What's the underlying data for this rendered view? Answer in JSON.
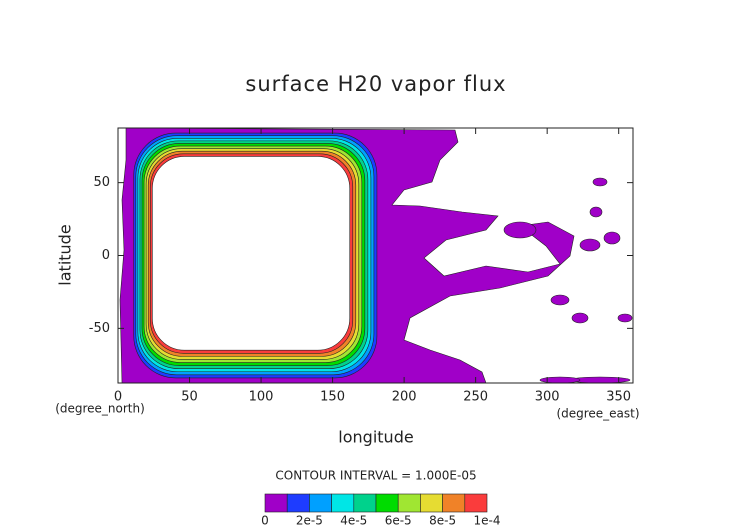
{
  "chart_data": {
    "type": "contour",
    "title": "surface H20 vapor flux",
    "xlabel": "longitude",
    "ylabel": "latitude",
    "xunit": "(degree_east)",
    "yunit": "(degree_north)",
    "xlim": [
      0,
      360
    ],
    "ylim": [
      -87.5,
      87.5
    ],
    "xticks": [
      0,
      50,
      100,
      150,
      200,
      250,
      300,
      350
    ],
    "yticks": [
      -50,
      0,
      50
    ],
    "contour_interval_text": "CONTOUR INTERVAL = 1.000E-05",
    "levels": [
      0,
      1e-05,
      2e-05,
      3e-05,
      4e-05,
      5e-05,
      6e-05,
      7e-05,
      8e-05,
      9e-05,
      0.0001
    ],
    "colors": [
      "#a000c8",
      "#1e3cff",
      "#00a0ff",
      "#00e6e6",
      "#00d28c",
      "#00dc00",
      "#a0e632",
      "#e6dc32",
      "#f08228",
      "#fa3c3c"
    ],
    "colorbar_ticks": [
      0,
      {
        "value": 2e-05,
        "label": "2e-5"
      },
      {
        "value": 4e-05,
        "label": "4e-5"
      },
      {
        "value": 6e-05,
        "label": "6e-5"
      },
      {
        "value": 8e-05,
        "label": "8e-5"
      },
      {
        "value": 0.0001,
        "label": "1e-4"
      }
    ]
  }
}
